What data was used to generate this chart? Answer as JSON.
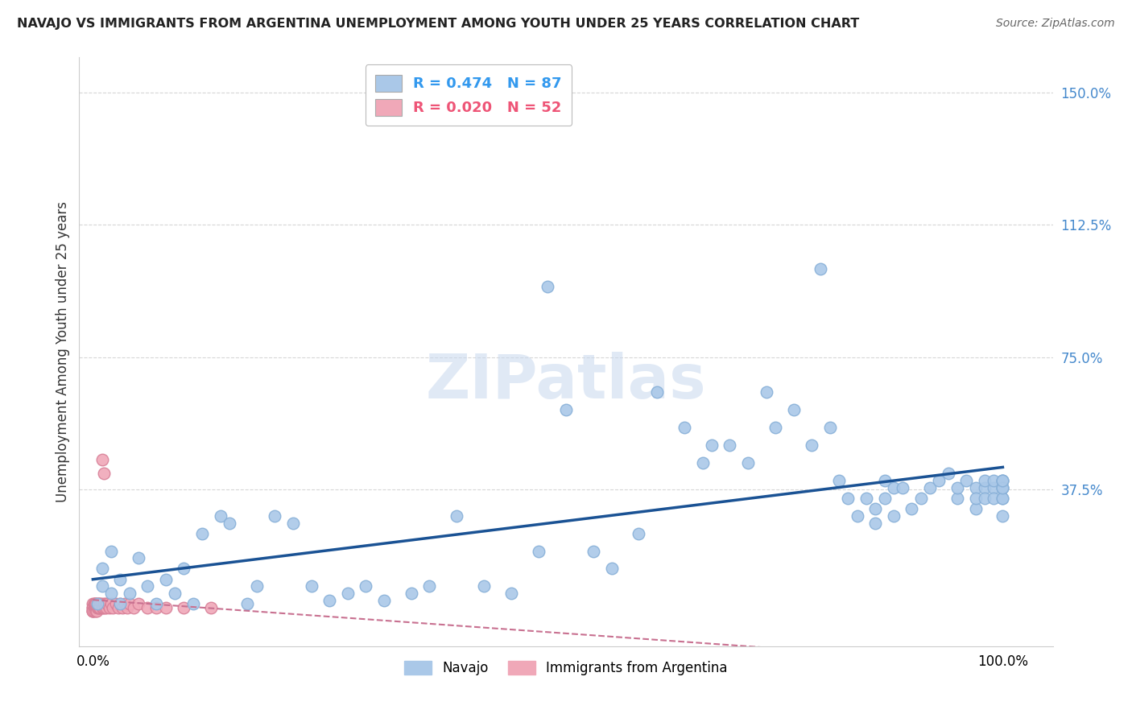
{
  "title": "NAVAJO VS IMMIGRANTS FROM ARGENTINA UNEMPLOYMENT AMONG YOUTH UNDER 25 YEARS CORRELATION CHART",
  "source": "Source: ZipAtlas.com",
  "ylabel": "Unemployment Among Youth under 25 years",
  "navajo_R": 0.474,
  "navajo_N": 87,
  "argentina_R": 0.02,
  "argentina_N": 52,
  "navajo_color": "#aac8e8",
  "navajo_edge_color": "#88b0d8",
  "navajo_line_color": "#1a5294",
  "argentina_color": "#f0a8b8",
  "argentina_edge_color": "#d88098",
  "argentina_line_color": "#c87090",
  "ytick_positions": [
    0.375,
    0.75,
    1.125,
    1.5
  ],
  "ytick_labels": [
    "37.5%",
    "75.0%",
    "112.5%",
    "150.0%"
  ],
  "watermark": "ZIPatlas",
  "grid_color": "#cccccc",
  "background_color": "#ffffff",
  "navajo_x": [
    0.005,
    0.01,
    0.01,
    0.02,
    0.02,
    0.03,
    0.03,
    0.04,
    0.05,
    0.06,
    0.07,
    0.08,
    0.09,
    0.1,
    0.11,
    0.12,
    0.14,
    0.15,
    0.17,
    0.18,
    0.2,
    0.22,
    0.24,
    0.26,
    0.28,
    0.3,
    0.32,
    0.35,
    0.37,
    0.4,
    0.43,
    0.46,
    0.49,
    0.5,
    0.52,
    0.55,
    0.57,
    0.6,
    0.62,
    0.65,
    0.67,
    0.68,
    0.7,
    0.72,
    0.74,
    0.75,
    0.77,
    0.79,
    0.8,
    0.81,
    0.82,
    0.83,
    0.84,
    0.85,
    0.86,
    0.86,
    0.87,
    0.87,
    0.88,
    0.88,
    0.89,
    0.9,
    0.91,
    0.92,
    0.93,
    0.94,
    0.95,
    0.95,
    0.96,
    0.97,
    0.97,
    0.97,
    0.98,
    0.98,
    0.98,
    0.99,
    0.99,
    0.99,
    1.0,
    1.0,
    1.0,
    1.0,
    1.0,
    1.0,
    1.0,
    1.0,
    1.0
  ],
  "navajo_y": [
    0.05,
    0.1,
    0.15,
    0.08,
    0.2,
    0.12,
    0.05,
    0.08,
    0.18,
    0.1,
    0.05,
    0.12,
    0.08,
    0.15,
    0.05,
    0.25,
    0.3,
    0.28,
    0.05,
    0.1,
    0.3,
    0.28,
    0.1,
    0.06,
    0.08,
    0.1,
    0.06,
    0.08,
    0.1,
    0.3,
    0.1,
    0.08,
    0.2,
    0.95,
    0.6,
    0.2,
    0.15,
    0.25,
    0.65,
    0.55,
    0.45,
    0.5,
    0.5,
    0.45,
    0.65,
    0.55,
    0.6,
    0.5,
    1.0,
    0.55,
    0.4,
    0.35,
    0.3,
    0.35,
    0.28,
    0.32,
    0.4,
    0.35,
    0.38,
    0.3,
    0.38,
    0.32,
    0.35,
    0.38,
    0.4,
    0.42,
    0.35,
    0.38,
    0.4,
    0.38,
    0.32,
    0.35,
    0.38,
    0.4,
    0.35,
    0.38,
    0.4,
    0.35,
    0.38,
    0.4,
    0.35,
    0.3,
    0.38,
    0.4,
    0.35,
    0.38,
    0.4
  ],
  "argentina_x": [
    0.0,
    0.0,
    0.0,
    0.0,
    0.0,
    0.0,
    0.001,
    0.001,
    0.001,
    0.002,
    0.002,
    0.002,
    0.003,
    0.003,
    0.003,
    0.004,
    0.004,
    0.005,
    0.005,
    0.006,
    0.006,
    0.007,
    0.007,
    0.008,
    0.008,
    0.009,
    0.01,
    0.01,
    0.011,
    0.012,
    0.012,
    0.013,
    0.014,
    0.015,
    0.016,
    0.018,
    0.02,
    0.022,
    0.025,
    0.028,
    0.03,
    0.032,
    0.035,
    0.038,
    0.04,
    0.045,
    0.05,
    0.06,
    0.07,
    0.08,
    0.1,
    0.13
  ],
  "argentina_y": [
    0.05,
    0.03,
    0.04,
    0.03,
    0.04,
    0.03,
    0.05,
    0.04,
    0.03,
    0.05,
    0.04,
    0.05,
    0.04,
    0.03,
    0.05,
    0.04,
    0.03,
    0.05,
    0.04,
    0.05,
    0.04,
    0.05,
    0.04,
    0.05,
    0.04,
    0.05,
    0.04,
    0.46,
    0.04,
    0.05,
    0.42,
    0.04,
    0.05,
    0.04,
    0.05,
    0.04,
    0.05,
    0.04,
    0.05,
    0.04,
    0.05,
    0.04,
    0.05,
    0.04,
    0.05,
    0.04,
    0.05,
    0.04,
    0.04,
    0.04,
    0.04,
    0.04
  ]
}
